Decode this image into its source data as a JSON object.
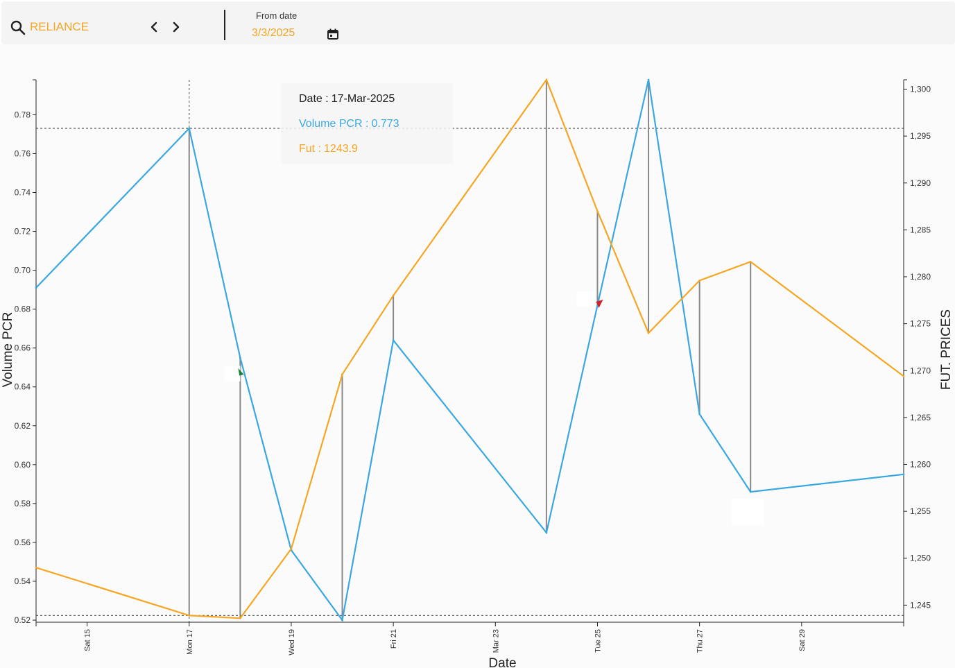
{
  "toolbar": {
    "symbol": "RELIANCE",
    "from_date_label": "From date",
    "from_date_value": "3/3/2025",
    "icons": [
      "search-icon",
      "chevron-left-icon",
      "chevron-right-icon",
      "calendar-icon"
    ]
  },
  "tooltip": {
    "date_label": "Date :",
    "date_value": "17-Mar-2025",
    "pcr_label": "Volume PCR :",
    "pcr_value": "0.773",
    "fut_label": "Fut :",
    "fut_value": "1243.9"
  },
  "colors": {
    "pcr": "#3aa7e0",
    "fut": "#f5a623",
    "candle_up": "#1a7f37",
    "candle_down": "#d0202a"
  },
  "chart_data": {
    "type": "line",
    "x_axis": {
      "label": "Date",
      "ticks": [
        "Sat 15",
        "Mon 17",
        "Wed 19",
        "Fri 21",
        "Mar 23",
        "Tue 25",
        "Thu 27",
        "Sat 29"
      ],
      "range": [
        "2025-03-14",
        "2025-03-31"
      ]
    },
    "y_left": {
      "label": "Volume PCR",
      "range": [
        0.52,
        0.798
      ],
      "ticks": [
        "0.52",
        "0.54",
        "0.56",
        "0.58",
        "0.60",
        "0.62",
        "0.64",
        "0.66",
        "0.68",
        "0.70",
        "0.72",
        "0.74",
        "0.76",
        "0.78"
      ]
    },
    "y_right": {
      "label": "FUT. PRICES",
      "range": [
        1243.4,
        1301.0
      ],
      "ticks": [
        "1,245",
        "1,250",
        "1,255",
        "1,260",
        "1,265",
        "1,270",
        "1,275",
        "1,280",
        "1,285",
        "1,290",
        "1,295",
        "1,300"
      ]
    },
    "dates": [
      "2025-03-14",
      "2025-03-17",
      "2025-03-18",
      "2025-03-19",
      "2025-03-20",
      "2025-03-21",
      "2025-03-24",
      "2025-03-25",
      "2025-03-26",
      "2025-03-27",
      "2025-03-28",
      "2025-03-31"
    ],
    "series": [
      {
        "name": "Volume PCR",
        "axis": "left",
        "color": "#3aa7e0",
        "values": [
          0.691,
          0.773,
          0.655,
          0.556,
          0.52,
          0.664,
          0.565,
          0.682,
          0.798,
          0.626,
          0.586,
          0.595
        ]
      },
      {
        "name": "Fut",
        "axis": "right",
        "color": "#f5a623",
        "values": [
          1249.0,
          1243.9,
          1243.6,
          1251.0,
          1269.6,
          1278.0,
          1301.0,
          1287.0,
          1274.0,
          1279.6,
          1281.6,
          1269.4
        ]
      }
    ],
    "crosshair": {
      "date": "2025-03-17",
      "pcr": 0.773,
      "fut": 1243.9
    },
    "legend": "none",
    "grid": false
  }
}
